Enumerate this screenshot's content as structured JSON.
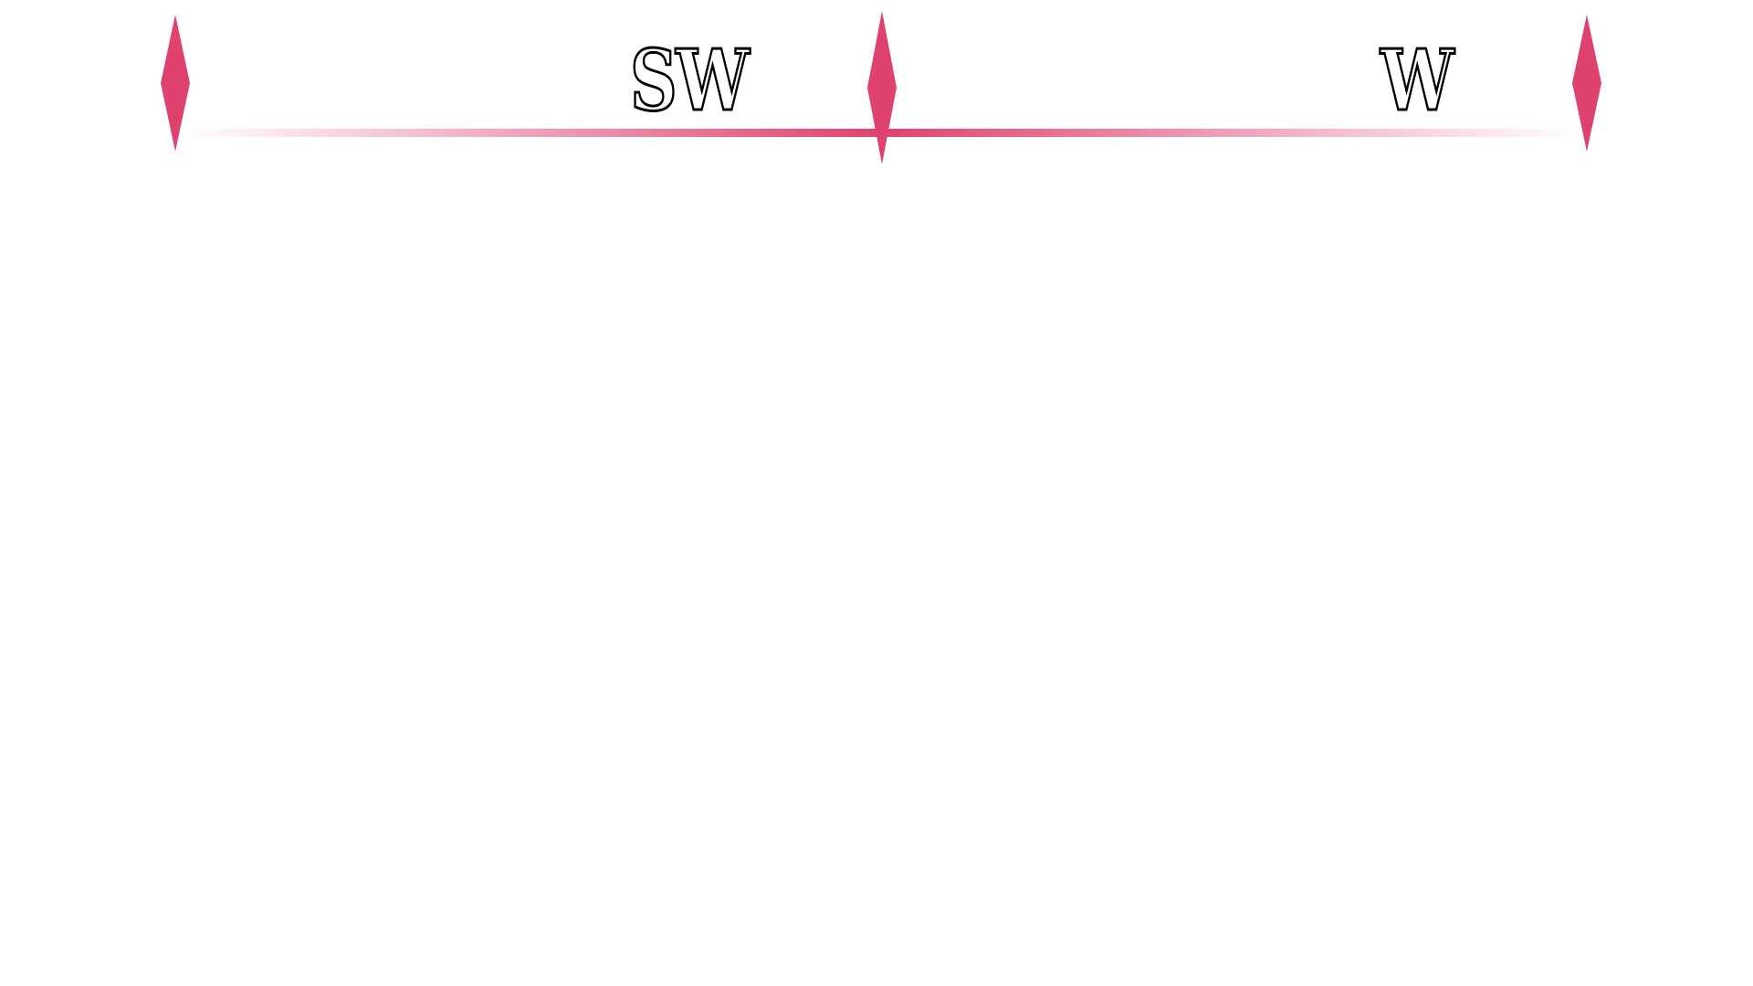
{
  "hud": {
    "compass": {
      "accent_color": "#e0426f",
      "labels": {
        "left": "SW",
        "right": "W"
      },
      "markers": [
        "left-edge",
        "center-heading",
        "right-edge"
      ]
    }
  }
}
